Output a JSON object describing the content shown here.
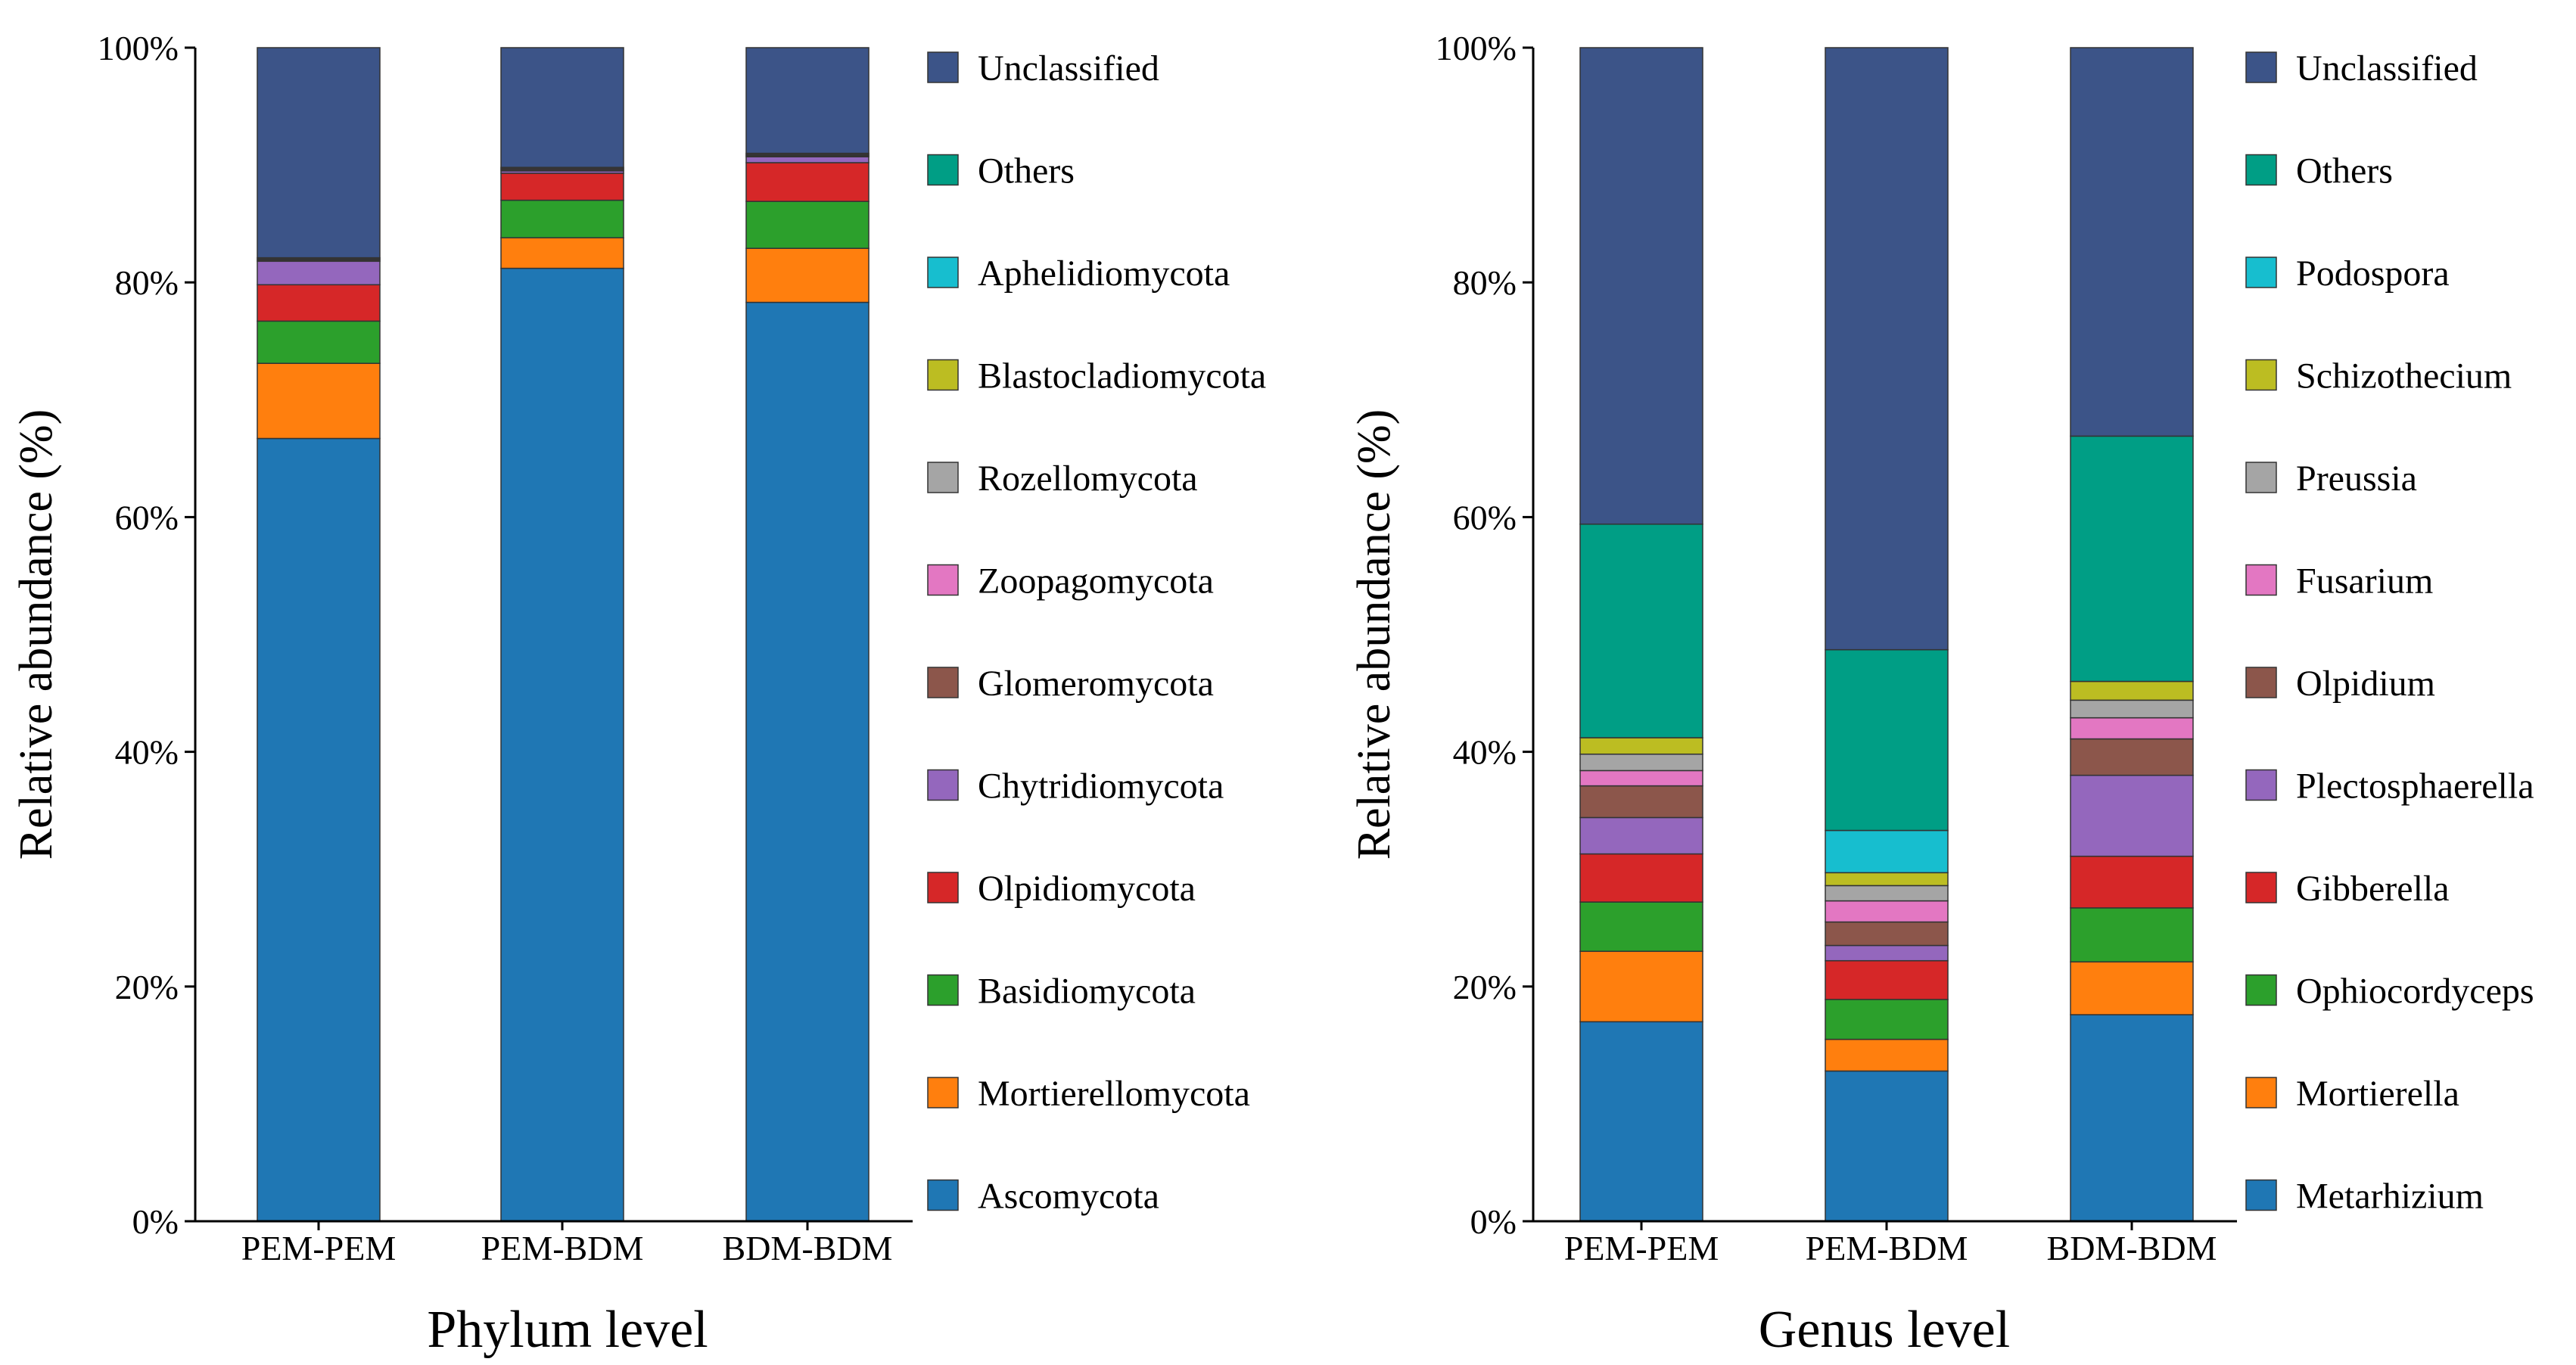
{
  "chart_data": [
    {
      "type": "bar",
      "stacked": true,
      "title": "",
      "xlabel": "Phylum level",
      "ylabel": "Relative abundance (%)",
      "ylim": [
        0,
        100
      ],
      "y_ticks": [
        "0%",
        "20%",
        "40%",
        "60%",
        "80%",
        "100%"
      ],
      "categories": [
        "PEM-PEM",
        "PEM-BDM",
        "BDM-BDM"
      ],
      "legend_position": "right",
      "series": [
        {
          "name": "Ascomycota",
          "color": "#1f77b4",
          "values": [
            66.7,
            81.2,
            78.3
          ]
        },
        {
          "name": "Mortierellomycota",
          "color": "#ff7f0e",
          "values": [
            6.4,
            2.6,
            4.6
          ]
        },
        {
          "name": "Basidiomycota",
          "color": "#2ca02c",
          "values": [
            3.6,
            3.2,
            4.0
          ]
        },
        {
          "name": "Olpidiomycota",
          "color": "#d62728",
          "values": [
            3.1,
            2.3,
            3.3
          ]
        },
        {
          "name": "Chytridiomycota",
          "color": "#9467bd",
          "values": [
            2.0,
            0.2,
            0.5
          ]
        },
        {
          "name": "Glomeromycota",
          "color": "#8c564b",
          "values": [
            0.1,
            0.1,
            0.1
          ]
        },
        {
          "name": "Zoopagomycota",
          "color": "#e377c2",
          "values": [
            0.1,
            0.1,
            0.1
          ]
        },
        {
          "name": "Rozellomycota",
          "color": "#a5a5a5",
          "values": [
            0.1,
            0.1,
            0.1
          ]
        },
        {
          "name": "Blastocladiomycota",
          "color": "#bcbd22",
          "values": [
            0.0,
            0.0,
            0.0
          ]
        },
        {
          "name": "Aphelidiomycota",
          "color": "#17becf",
          "values": [
            0.0,
            0.0,
            0.0
          ]
        },
        {
          "name": "Others",
          "color": "#009e85",
          "values": [
            0.0,
            0.0,
            0.0
          ]
        },
        {
          "name": "Unclassified",
          "color": "#3c5488",
          "values": [
            17.9,
            10.2,
            9.0
          ]
        }
      ]
    },
    {
      "type": "bar",
      "stacked": true,
      "title": "",
      "xlabel": "Genus level",
      "ylabel": "Relative abundance (%)",
      "ylim": [
        0,
        100
      ],
      "y_ticks": [
        "0%",
        "20%",
        "40%",
        "60%",
        "80%",
        "100%"
      ],
      "categories": [
        "PEM-PEM",
        "PEM-BDM",
        "BDM-BDM"
      ],
      "legend_position": "right",
      "series": [
        {
          "name": "Metarhizium",
          "color": "#1f77b4",
          "values": [
            17.0,
            12.8,
            17.6
          ]
        },
        {
          "name": "Mortierella",
          "color": "#ff7f0e",
          "values": [
            6.0,
            2.7,
            4.5
          ]
        },
        {
          "name": "Ophiocordyceps",
          "color": "#2ca02c",
          "values": [
            4.2,
            3.4,
            4.6
          ]
        },
        {
          "name": "Gibberella",
          "color": "#d62728",
          "values": [
            4.1,
            3.3,
            4.4
          ]
        },
        {
          "name": "Plectosphaerella",
          "color": "#9467bd",
          "values": [
            3.1,
            1.3,
            6.9
          ]
        },
        {
          "name": "Olpidium",
          "color": "#8c564b",
          "values": [
            2.7,
            2.0,
            3.1
          ]
        },
        {
          "name": "Fusarium",
          "color": "#e377c2",
          "values": [
            1.3,
            1.8,
            1.8
          ]
        },
        {
          "name": "Preussia",
          "color": "#a5a5a5",
          "values": [
            1.4,
            1.3,
            1.5
          ]
        },
        {
          "name": "Schizothecium",
          "color": "#bcbd22",
          "values": [
            1.4,
            1.1,
            1.6
          ]
        },
        {
          "name": "Podospora",
          "color": "#17becf",
          "values": [
            0.0,
            3.6,
            0.0
          ]
        },
        {
          "name": "Others",
          "color": "#009e85",
          "values": [
            18.2,
            15.4,
            20.9
          ]
        },
        {
          "name": "Unclassified",
          "color": "#3c5488",
          "values": [
            40.6,
            51.3,
            33.1
          ]
        }
      ]
    }
  ]
}
